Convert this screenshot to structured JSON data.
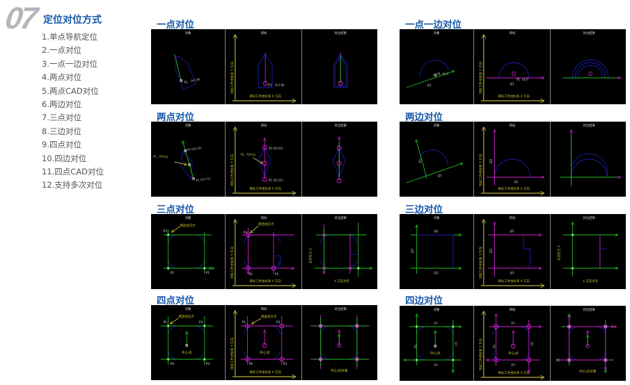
{
  "header": {
    "number": "07",
    "title": "定位对位方式"
  },
  "menu": [
    "1.单点导航定位",
    "2.一点对位",
    "3.一点一边对位",
    "4.两点对位",
    "5.两点CAD对位",
    "6.两边对位",
    "7.三点对位",
    "8.三边对位",
    "9.四点对位",
    "10.四边对位",
    "11.四点CAD对位",
    "12.支持多次对位"
  ],
  "panel_labels": [
    "对象",
    "目标",
    "对位结果"
  ],
  "axis": {
    "y": "目标工件坐标系 Y 方向",
    "x": "目标工件坐标系 X 方向"
  },
  "colors": {
    "title": "#1256a8",
    "green": "#22c022",
    "magenta": "#d020d0",
    "blue": "#1c1cb0",
    "yellow": "#c8c030",
    "axis": "#b8b040"
  },
  "sections": [
    {
      "kind": "one-point",
      "title": "一点对位",
      "labels": {
        "p1": "P1",
        "coord": "(X,Y,Φ)"
      }
    },
    {
      "kind": "one-edge",
      "title": "一点一边对位",
      "labels": {
        "p1": "P1",
        "coord": "(X,Y)",
        "edge": "边1"
      }
    },
    {
      "kind": "two-point",
      "title": "两点对位",
      "labels": {
        "p1": "P1",
        "p2": "P2",
        "c1": "(X1,Y1)",
        "c2": "(X2,Y2)",
        "mid": "P1、P2中点"
      }
    },
    {
      "kind": "two-edge",
      "title": "两边对位",
      "labels": {
        "e1": "边1",
        "e2": "边2"
      }
    },
    {
      "kind": "three-point",
      "title": "三点对位",
      "labels": {
        "p1": "P1",
        "p2": "P2",
        "p3": "P3",
        "cross": "两直线交点",
        "yalign": "Y 方向对齐",
        "xalign": "X 方向对齐"
      }
    },
    {
      "kind": "three-edge",
      "title": "三边对位",
      "labels": {
        "e1": "边1",
        "e2": "边2",
        "e3": "边3",
        "yalign": "Y 方向对齐",
        "xalign": "X 方向对齐"
      }
    },
    {
      "kind": "four-point",
      "title": "四点对位",
      "labels": {
        "p1": "P1",
        "p2": "P2",
        "p3": "P3",
        "p4": "P4",
        "cross": "两直线交点",
        "center": "中心点",
        "result": "中心点对准"
      }
    },
    {
      "kind": "four-edge",
      "title": "四边对位",
      "labels": {
        "e1": "边1",
        "e2": "边2",
        "e3": "边3",
        "e4": "边4",
        "center": "中心点",
        "result": "中心点对准"
      }
    }
  ]
}
